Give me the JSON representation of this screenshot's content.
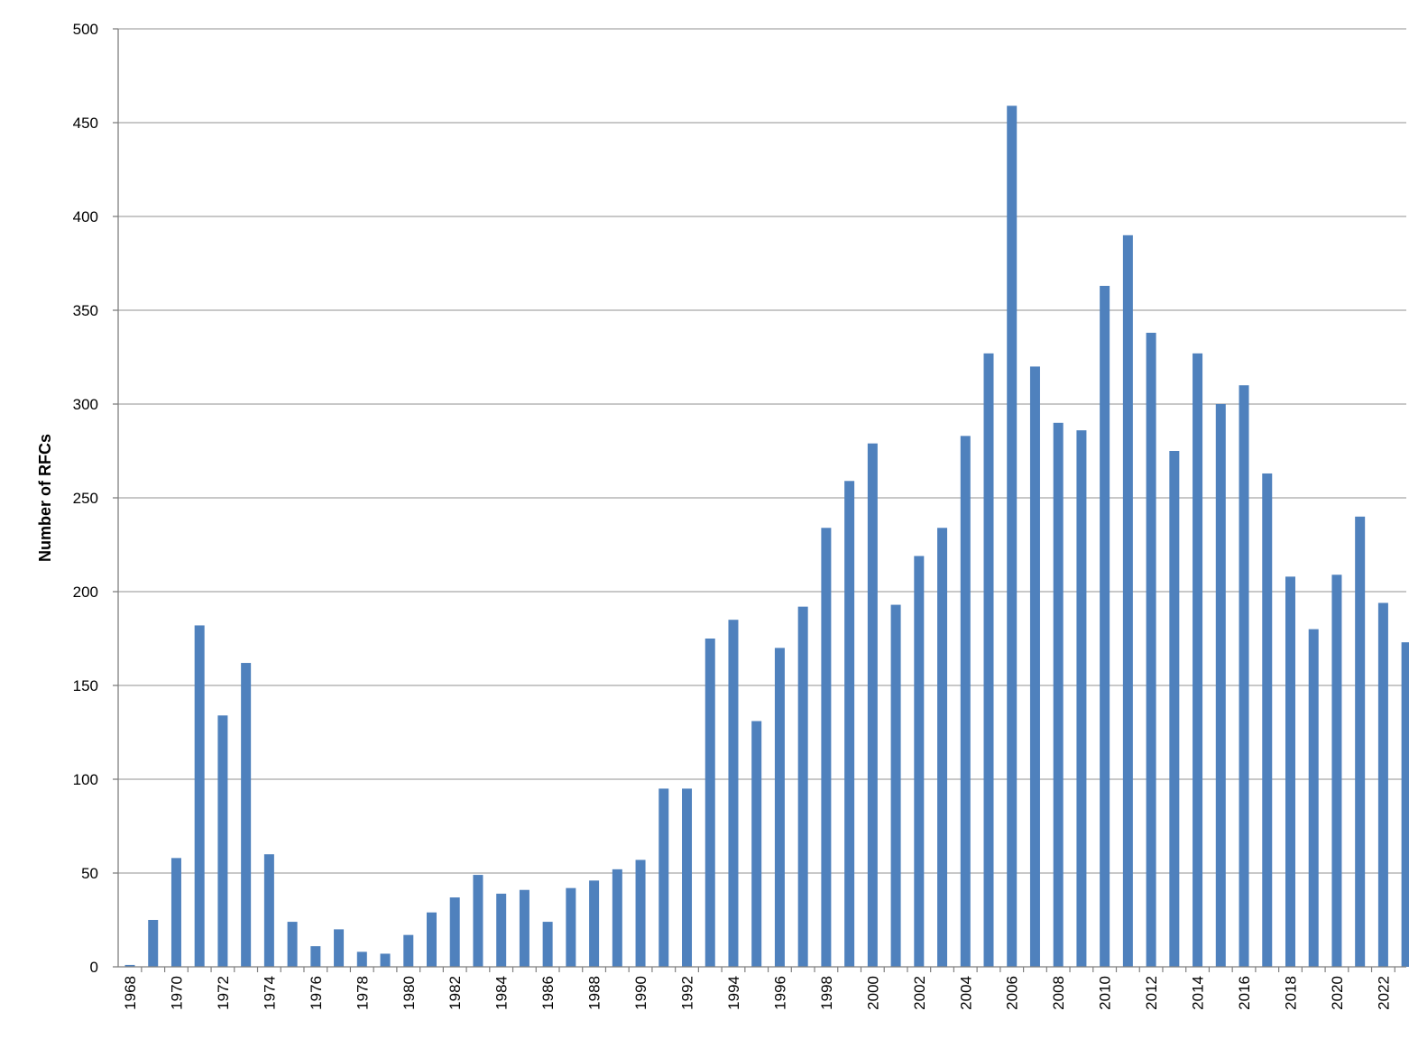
{
  "chart_data": {
    "type": "bar",
    "title": "",
    "xlabel": "",
    "ylabel": "Number of RFCs",
    "ylim": [
      0,
      500
    ],
    "yticks": [
      0,
      50,
      100,
      150,
      200,
      250,
      300,
      350,
      400,
      450,
      500
    ],
    "grid": "horizontal",
    "legend": "none",
    "bar_color": "#4f81bd",
    "categories": [
      1968,
      1969,
      1970,
      1971,
      1972,
      1973,
      1974,
      1975,
      1976,
      1977,
      1978,
      1979,
      1980,
      1981,
      1982,
      1983,
      1984,
      1985,
      1986,
      1987,
      1988,
      1989,
      1990,
      1991,
      1992,
      1993,
      1994,
      1995,
      1996,
      1997,
      1998,
      1999,
      2000,
      2001,
      2002,
      2003,
      2004,
      2005,
      2006,
      2007,
      2008,
      2009,
      2010,
      2011,
      2012,
      2013,
      2014,
      2015,
      2016,
      2017,
      2018,
      2019,
      2020,
      2021,
      2022,
      2023
    ],
    "xtick_labels": [
      1968,
      1970,
      1972,
      1974,
      1976,
      1978,
      1980,
      1982,
      1984,
      1986,
      1988,
      1990,
      1992,
      1994,
      1996,
      1998,
      2000,
      2002,
      2004,
      2006,
      2008,
      2010,
      2012,
      2014,
      2016,
      2018,
      2020,
      2022
    ],
    "values": [
      1,
      25,
      58,
      182,
      134,
      162,
      60,
      24,
      11,
      20,
      8,
      7,
      17,
      29,
      37,
      49,
      39,
      41,
      24,
      42,
      46,
      52,
      57,
      95,
      95,
      175,
      185,
      131,
      170,
      192,
      234,
      259,
      279,
      193,
      219,
      234,
      283,
      327,
      459,
      320,
      290,
      286,
      363,
      390,
      338,
      275,
      327,
      300,
      310,
      263,
      208,
      180,
      209,
      240,
      194,
      173
    ]
  }
}
